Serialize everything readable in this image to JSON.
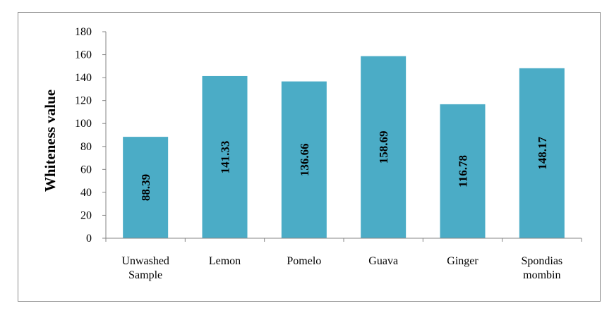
{
  "chart_data": {
    "type": "bar",
    "title": "",
    "xlabel": "",
    "ylabel": "Whiteness value",
    "ylim": [
      0,
      180
    ],
    "y_ticks": [
      "0",
      "20",
      "40",
      "60",
      "80",
      "100",
      "120",
      "140",
      "160",
      "180"
    ],
    "categories": [
      [
        "Unwashed",
        "Sample"
      ],
      [
        "Lemon"
      ],
      [
        "Pomelo"
      ],
      [
        "Guava"
      ],
      [
        "Ginger"
      ],
      [
        "Spondias",
        "mombin"
      ]
    ],
    "values": [
      88.39,
      141.33,
      136.66,
      158.69,
      116.78,
      148.17
    ],
    "data_labels": [
      "88.39",
      "141.33",
      "136.66",
      "158.69",
      "116.78",
      "148.17"
    ],
    "bar_color": "#4BACC6",
    "grid": false,
    "legend": "none"
  }
}
